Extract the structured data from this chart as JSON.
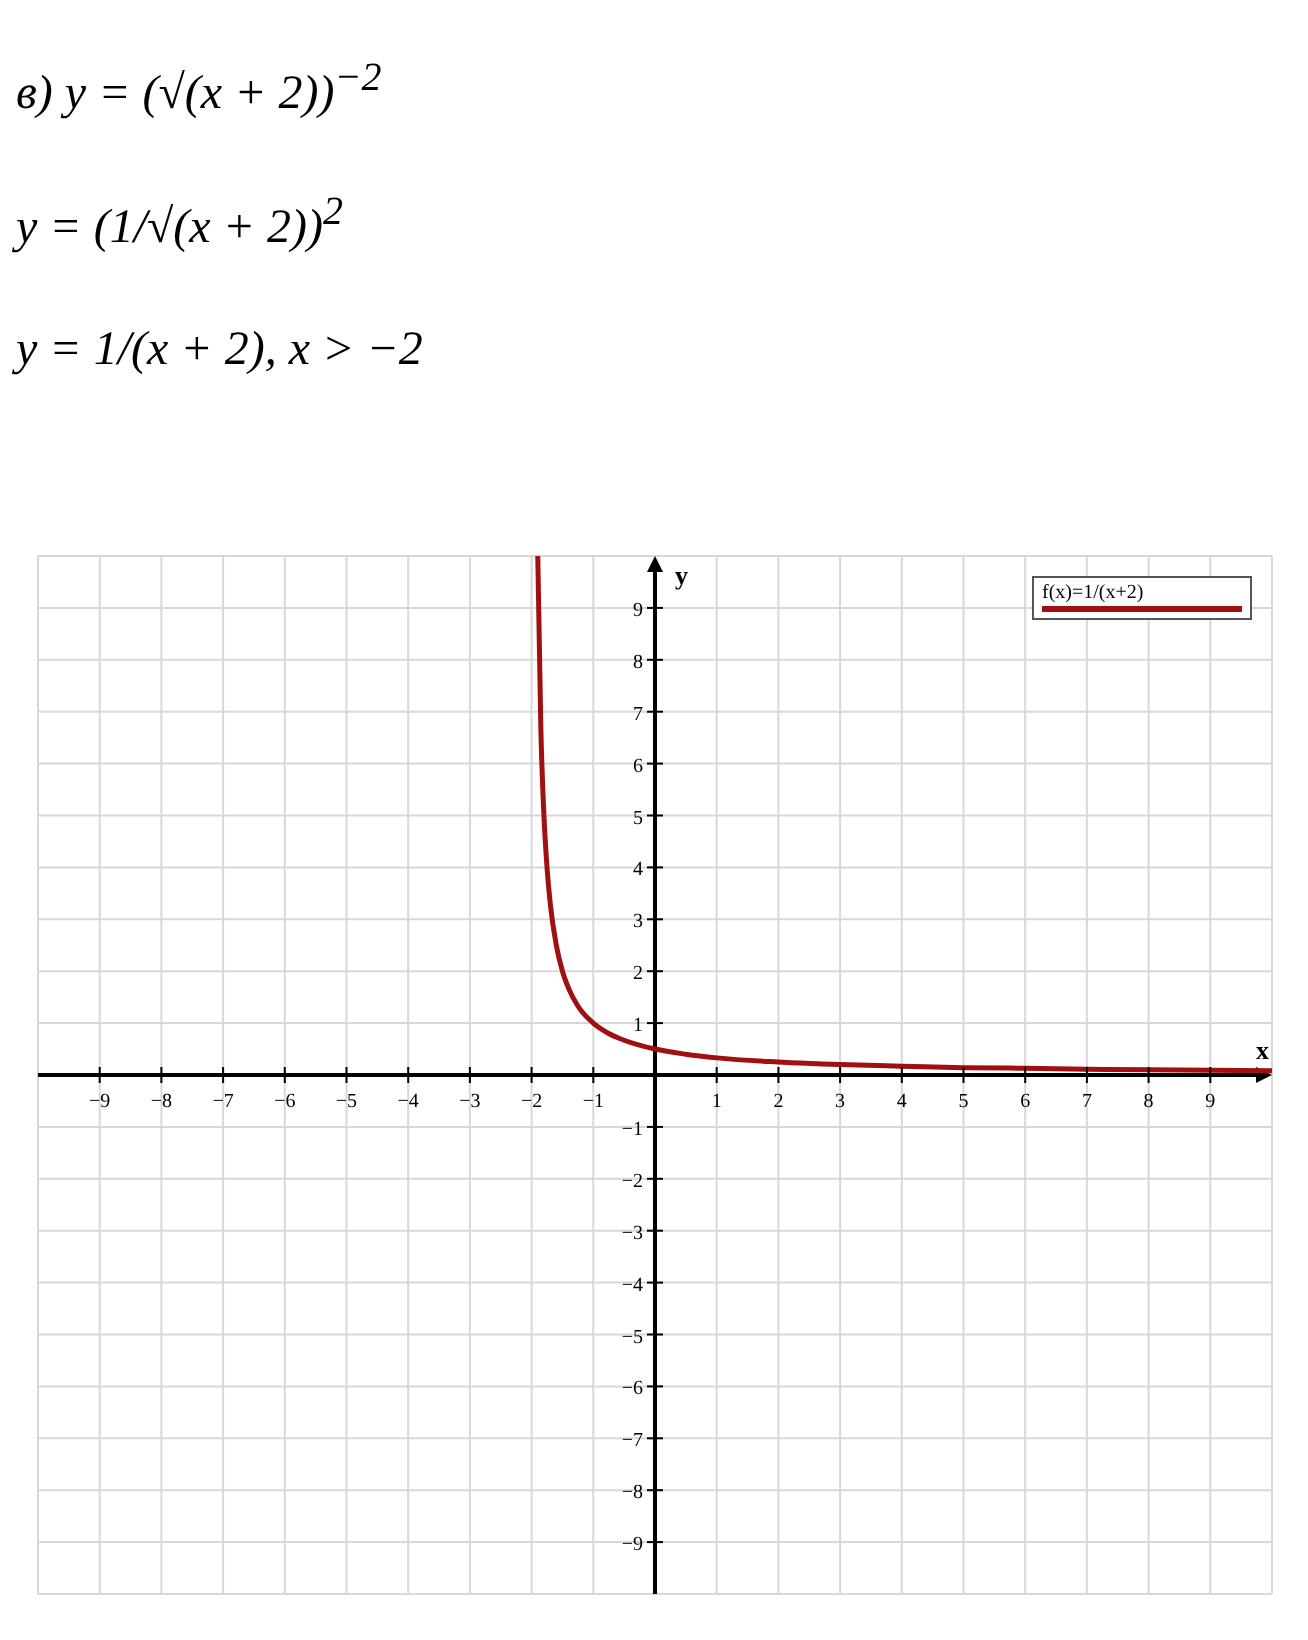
{
  "chart_data": {
    "type": "line",
    "annotations": [
      "в) y = (√(x + 2))$^{−2}$",
      "y = (1/√(x + 2))$^{2}$",
      "y = 1/(x + 2),      x > −2"
    ],
    "xlabel": "x",
    "ylabel": "y",
    "series": [
      {
        "name": "f(x)=1/(x+2)",
        "color": "#a01010",
        "x": [
          -1.9,
          -1.85,
          -1.8,
          -1.75,
          -1.7,
          -1.6,
          -1.5,
          -1.4,
          -1.25,
          -1,
          -0.75,
          -0.5,
          0,
          0.5,
          1,
          2,
          3,
          4,
          5,
          6,
          7,
          8,
          9,
          10
        ],
        "values": [
          10,
          6.67,
          5,
          4,
          3.33,
          2.5,
          2,
          1.67,
          1.33,
          1,
          0.8,
          0.67,
          0.5,
          0.4,
          0.33,
          0.25,
          0.2,
          0.17,
          0.14,
          0.13,
          0.11,
          0.1,
          0.09,
          0.08
        ]
      }
    ],
    "xlim": [
      -10,
      10
    ],
    "ylim": [
      -10,
      10
    ],
    "xticks": [
      -9,
      -8,
      -7,
      -6,
      -5,
      -4,
      -3,
      -2,
      -1,
      1,
      2,
      3,
      4,
      5,
      6,
      7,
      8,
      9
    ],
    "yticks": [
      -9,
      -8,
      -7,
      -6,
      -5,
      -4,
      -3,
      -2,
      -1,
      1,
      2,
      3,
      4,
      5,
      6,
      7,
      8,
      9
    ],
    "grid": true,
    "legend": "top right",
    "marker": "none",
    "line_style": "solid"
  }
}
